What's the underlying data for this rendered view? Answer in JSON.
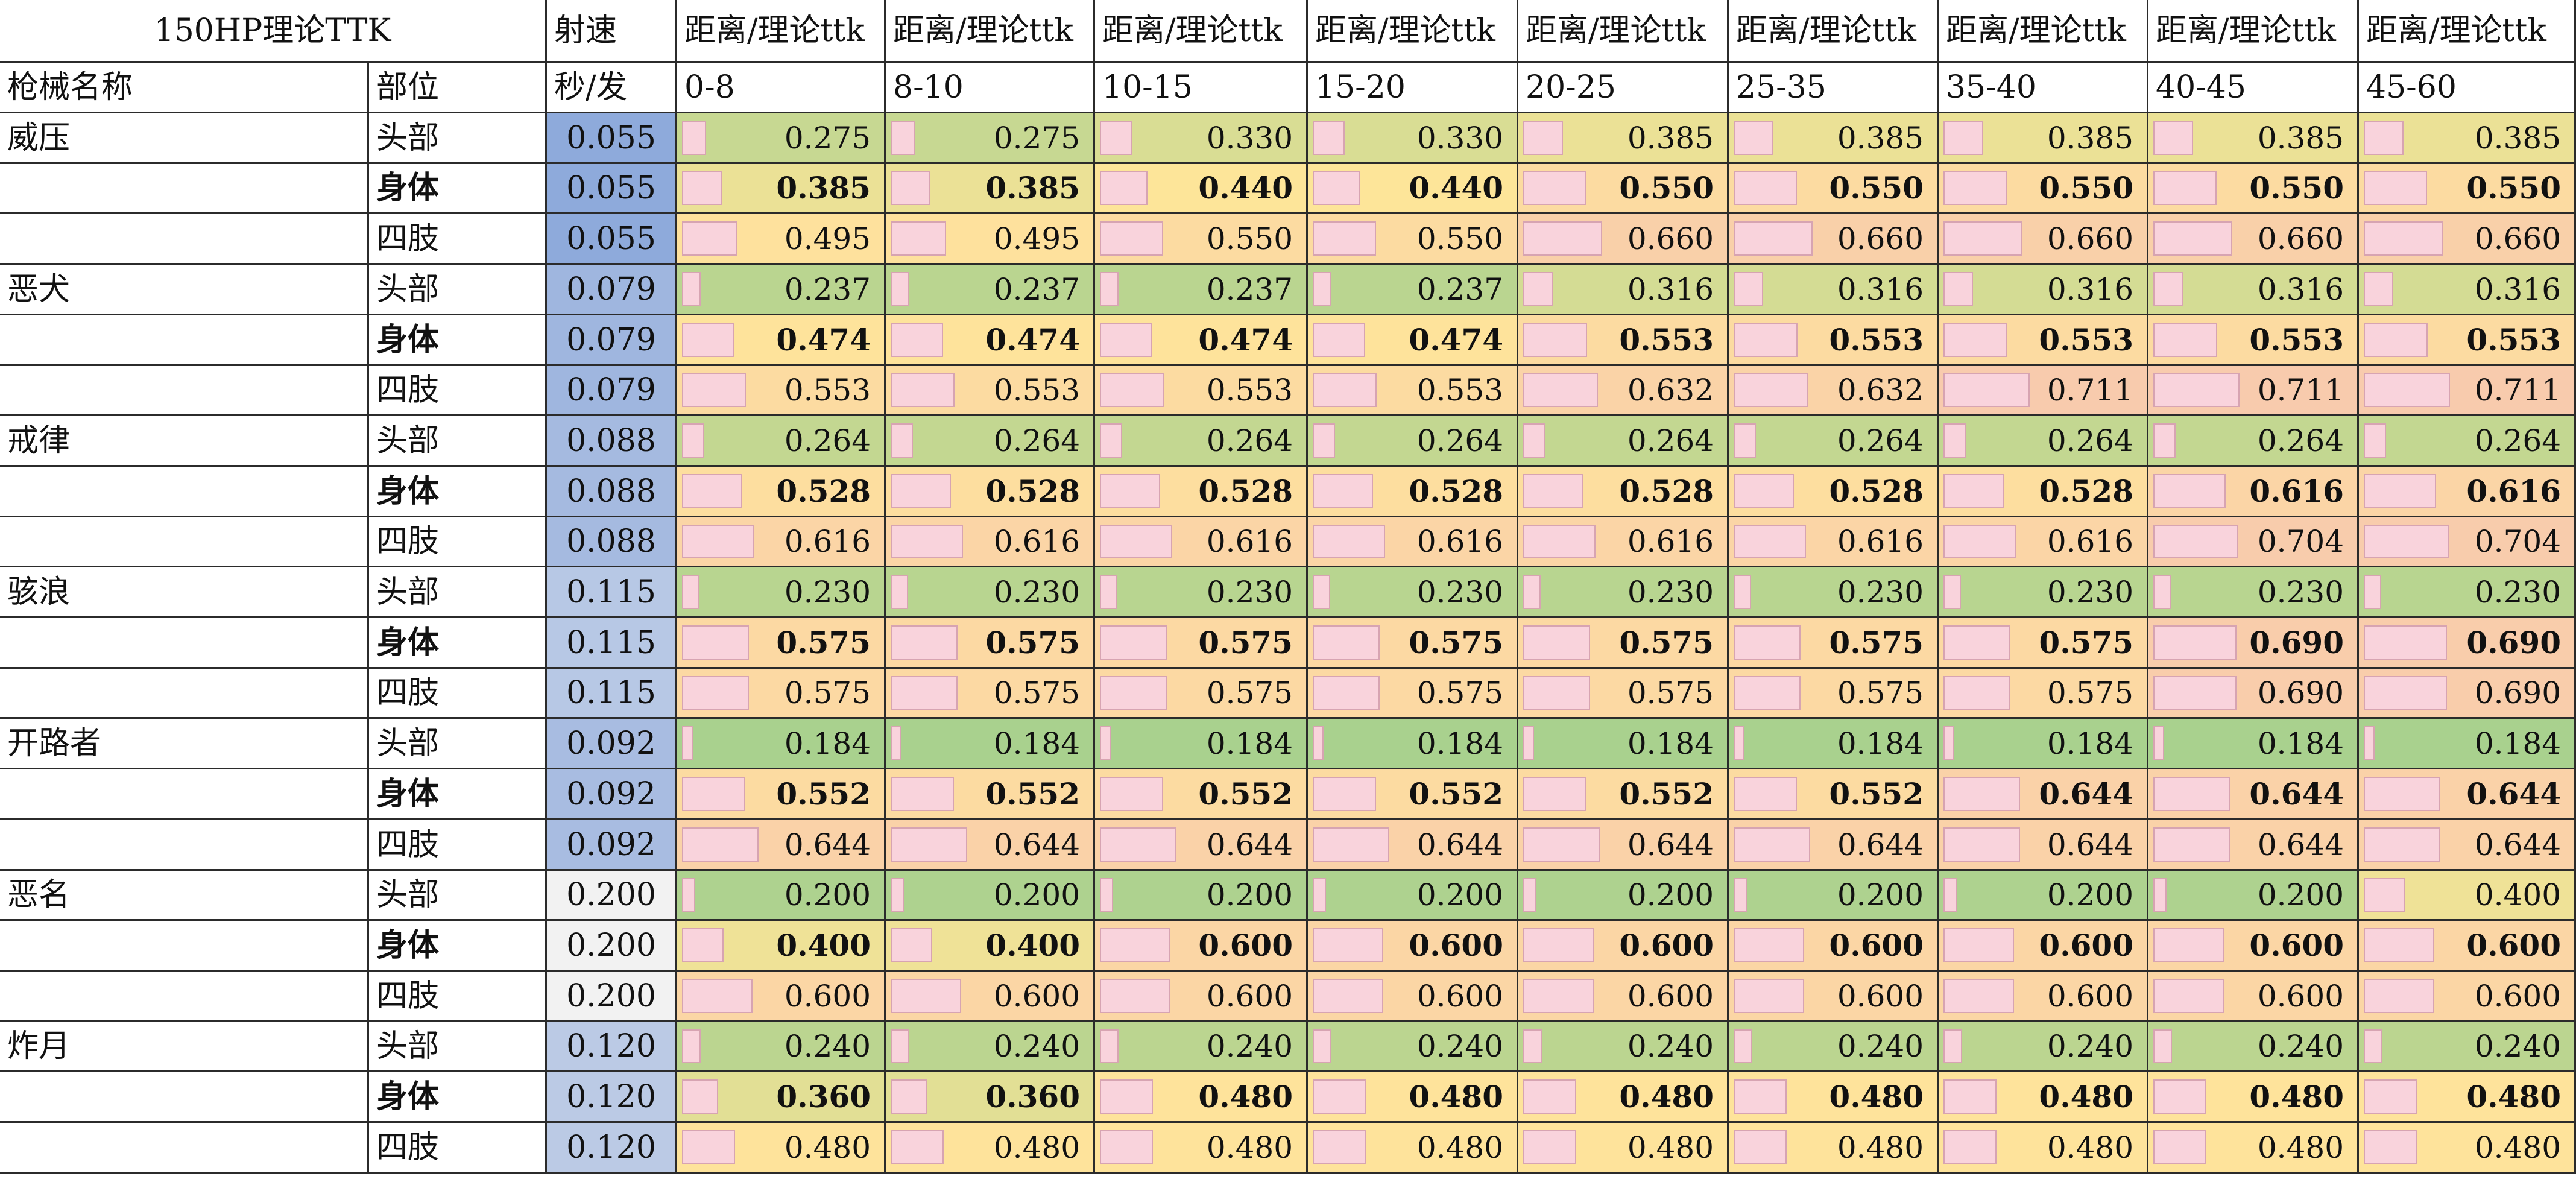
{
  "sheet": {
    "title": "150HP理论TTK",
    "fire_rate_header": "射速",
    "fire_rate_unit": "秒/发",
    "col_weapon": "枪械名称",
    "col_part": "部位",
    "distance_header": "距离/理论ttk",
    "ranges": [
      "0-8",
      "8-10",
      "10-15",
      "15-20",
      "20-25",
      "25-35",
      "35-40",
      "40-45",
      "45-60"
    ],
    "rows": [
      {
        "weapon": "威压",
        "part": "头部",
        "bold": false,
        "rate": "0.055",
        "ttk": [
          "0.275",
          "0.275",
          "0.330",
          "0.330",
          "0.385",
          "0.385",
          "0.385",
          "0.385",
          "0.385"
        ]
      },
      {
        "weapon": "",
        "part": "身体",
        "bold": true,
        "rate": "0.055",
        "ttk": [
          "0.385",
          "0.385",
          "0.440",
          "0.440",
          "0.550",
          "0.550",
          "0.550",
          "0.550",
          "0.550"
        ]
      },
      {
        "weapon": "",
        "part": "四肢",
        "bold": false,
        "rate": "0.055",
        "ttk": [
          "0.495",
          "0.495",
          "0.550",
          "0.550",
          "0.660",
          "0.660",
          "0.660",
          "0.660",
          "0.660"
        ]
      },
      {
        "weapon": "恶犬",
        "part": "头部",
        "bold": false,
        "rate": "0.079",
        "ttk": [
          "0.237",
          "0.237",
          "0.237",
          "0.237",
          "0.316",
          "0.316",
          "0.316",
          "0.316",
          "0.316"
        ]
      },
      {
        "weapon": "",
        "part": "身体",
        "bold": true,
        "rate": "0.079",
        "ttk": [
          "0.474",
          "0.474",
          "0.474",
          "0.474",
          "0.553",
          "0.553",
          "0.553",
          "0.553",
          "0.553"
        ]
      },
      {
        "weapon": "",
        "part": "四肢",
        "bold": false,
        "rate": "0.079",
        "ttk": [
          "0.553",
          "0.553",
          "0.553",
          "0.553",
          "0.632",
          "0.632",
          "0.711",
          "0.711",
          "0.711"
        ]
      },
      {
        "weapon": "戒律",
        "part": "头部",
        "bold": false,
        "rate": "0.088",
        "ttk": [
          "0.264",
          "0.264",
          "0.264",
          "0.264",
          "0.264",
          "0.264",
          "0.264",
          "0.264",
          "0.264"
        ]
      },
      {
        "weapon": "",
        "part": "身体",
        "bold": true,
        "rate": "0.088",
        "ttk": [
          "0.528",
          "0.528",
          "0.528",
          "0.528",
          "0.528",
          "0.528",
          "0.528",
          "0.616",
          "0.616"
        ]
      },
      {
        "weapon": "",
        "part": "四肢",
        "bold": false,
        "rate": "0.088",
        "ttk": [
          "0.616",
          "0.616",
          "0.616",
          "0.616",
          "0.616",
          "0.616",
          "0.616",
          "0.704",
          "0.704"
        ]
      },
      {
        "weapon": "骇浪",
        "part": "头部",
        "bold": false,
        "rate": "0.115",
        "ttk": [
          "0.230",
          "0.230",
          "0.230",
          "0.230",
          "0.230",
          "0.230",
          "0.230",
          "0.230",
          "0.230"
        ]
      },
      {
        "weapon": "",
        "part": "身体",
        "bold": true,
        "rate": "0.115",
        "ttk": [
          "0.575",
          "0.575",
          "0.575",
          "0.575",
          "0.575",
          "0.575",
          "0.575",
          "0.690",
          "0.690"
        ]
      },
      {
        "weapon": "",
        "part": "四肢",
        "bold": false,
        "rate": "0.115",
        "ttk": [
          "0.575",
          "0.575",
          "0.575",
          "0.575",
          "0.575",
          "0.575",
          "0.575",
          "0.690",
          "0.690"
        ]
      },
      {
        "weapon": "开路者",
        "part": "头部",
        "bold": false,
        "rate": "0.092",
        "ttk": [
          "0.184",
          "0.184",
          "0.184",
          "0.184",
          "0.184",
          "0.184",
          "0.184",
          "0.184",
          "0.184"
        ]
      },
      {
        "weapon": "",
        "part": "身体",
        "bold": true,
        "rate": "0.092",
        "ttk": [
          "0.552",
          "0.552",
          "0.552",
          "0.552",
          "0.552",
          "0.552",
          "0.644",
          "0.644",
          "0.644"
        ]
      },
      {
        "weapon": "",
        "part": "四肢",
        "bold": false,
        "rate": "0.092",
        "ttk": [
          "0.644",
          "0.644",
          "0.644",
          "0.644",
          "0.644",
          "0.644",
          "0.644",
          "0.644",
          "0.644"
        ]
      },
      {
        "weapon": "恶名",
        "part": "头部",
        "bold": false,
        "rate": "0.200",
        "ttk": [
          "0.200",
          "0.200",
          "0.200",
          "0.200",
          "0.200",
          "0.200",
          "0.200",
          "0.200",
          "0.400"
        ]
      },
      {
        "weapon": "",
        "part": "身体",
        "bold": true,
        "rate": "0.200",
        "ttk": [
          "0.400",
          "0.400",
          "0.600",
          "0.600",
          "0.600",
          "0.600",
          "0.600",
          "0.600",
          "0.600"
        ]
      },
      {
        "weapon": "",
        "part": "四肢",
        "bold": false,
        "rate": "0.200",
        "ttk": [
          "0.600",
          "0.600",
          "0.600",
          "0.600",
          "0.600",
          "0.600",
          "0.600",
          "0.600",
          "0.600"
        ]
      },
      {
        "weapon": "炸月",
        "part": "头部",
        "bold": false,
        "rate": "0.120",
        "ttk": [
          "0.240",
          "0.240",
          "0.240",
          "0.240",
          "0.240",
          "0.240",
          "0.240",
          "0.240",
          "0.240"
        ]
      },
      {
        "weapon": "",
        "part": "身体",
        "bold": true,
        "rate": "0.120",
        "ttk": [
          "0.360",
          "0.360",
          "0.480",
          "0.480",
          "0.480",
          "0.480",
          "0.480",
          "0.480",
          "0.480"
        ]
      },
      {
        "weapon": "",
        "part": "四肢",
        "bold": false,
        "rate": "0.120",
        "ttk": [
          "0.480",
          "0.480",
          "0.480",
          "0.480",
          "0.480",
          "0.480",
          "0.480",
          "0.480",
          "0.480"
        ]
      }
    ],
    "colors": {
      "grid": "#2b2b2b",
      "data_bar": "#f9d3dc",
      "data_bar_border": "#d7a4b2",
      "scale_low": "#a9d18e",
      "scale_mid": "#ffe699",
      "scale_high": "#f8cbad",
      "rate_fast": "#8eaadb",
      "rate_slow": "#f2f2f2"
    }
  }
}
